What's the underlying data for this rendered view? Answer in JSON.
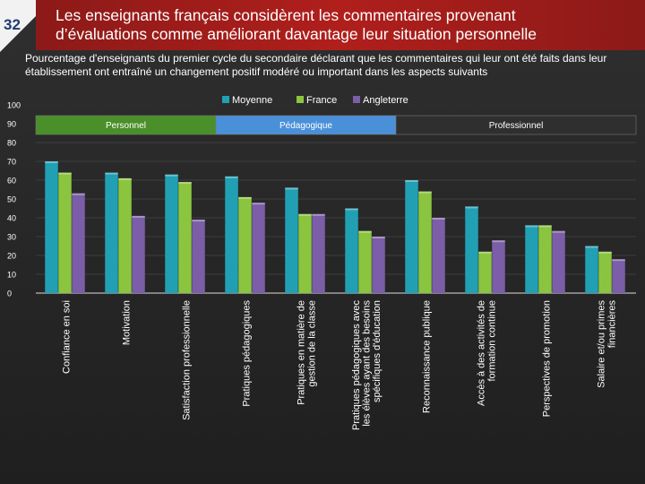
{
  "slide": {
    "number": "32"
  },
  "header": {
    "title": "Les enseignants français considèrent les commentaires provenant d’évaluations comme améliorant davantage leur situation personnelle"
  },
  "colors": {
    "moyenne": "#21a0b4",
    "france": "#8bc53f",
    "angleterre": "#7b5ea7",
    "personnel": "#4a8f2a",
    "pedagogique": "#4a90d9",
    "professionnel": "#2f2f2f"
  },
  "chart_data": {
    "type": "bar",
    "title": "Pourcentage d'enseignants du premier cycle du secondaire déclarant que les commentaires qui leur ont été faits dans leur établissement ont entraîné un changement positif modéré ou important dans les aspects suivants",
    "ylim": [
      0,
      100
    ],
    "yticks": [
      0,
      10,
      20,
      30,
      40,
      50,
      60,
      70,
      80,
      90,
      100
    ],
    "categories": [
      [
        "Confiance en soi"
      ],
      [
        "Motivation"
      ],
      [
        "Satisfaction professionnelle"
      ],
      [
        "Pratiques pédagogiques"
      ],
      [
        "Pratiques en matière de",
        "gestion de la classe"
      ],
      [
        "Pratiques pédagogiques avec",
        "les élèves ayant des besoins",
        "spécifiques d'éducation"
      ],
      [
        "Reconnaissance publique"
      ],
      [
        "Accès à des activités de",
        "formation continue"
      ],
      [
        "Perspectives de promotion"
      ],
      [
        "Salaire et/ou primes",
        "financières"
      ]
    ],
    "series": [
      {
        "name": "Moyenne",
        "values": [
          70,
          64,
          63,
          62,
          56,
          45,
          60,
          46,
          36,
          25
        ]
      },
      {
        "name": "France",
        "values": [
          64,
          61,
          59,
          51,
          42,
          33,
          54,
          22,
          36,
          22
        ]
      },
      {
        "name": "Angleterre",
        "values": [
          53,
          41,
          39,
          48,
          42,
          30,
          40,
          28,
          33,
          18
        ]
      }
    ],
    "groups": [
      {
        "label": "Personnel",
        "from": 0,
        "to": 2
      },
      {
        "label": "Pédagogique",
        "from": 3,
        "to": 5
      },
      {
        "label": "Professionnel",
        "from": 6,
        "to": 9
      }
    ],
    "legend": [
      "Moyenne",
      "France",
      "Angleterre"
    ],
    "legend_position": "top-center"
  }
}
